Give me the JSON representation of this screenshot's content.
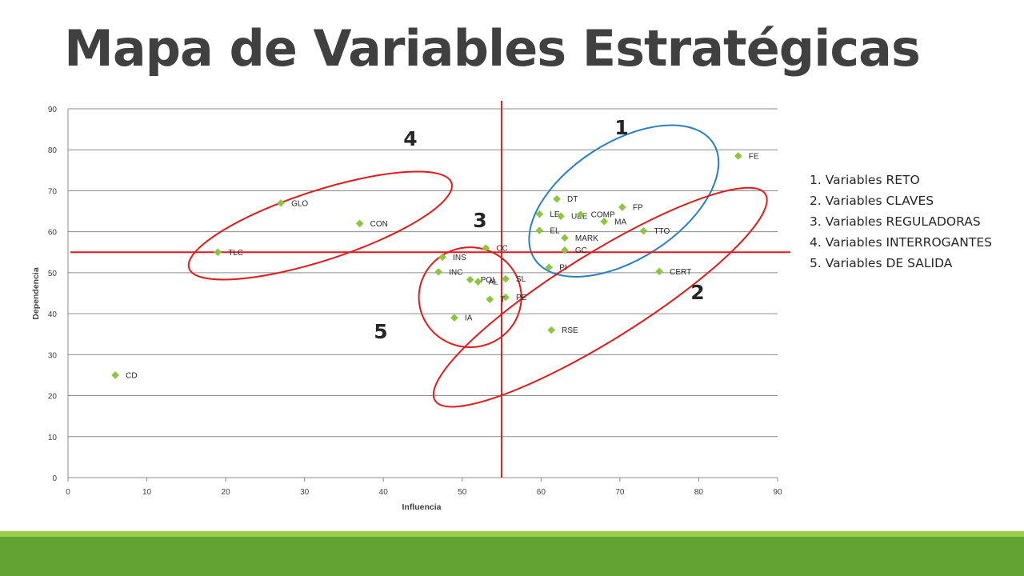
{
  "title": "Mapa de Variables Estratégicas",
  "legend": [
    "1. Variables RETO",
    "2. Variables CLAVES",
    "3. Variables REGULADORAS",
    "4. Variables INTERROGANTES",
    "5. Variables DE SALIDA"
  ],
  "colors": {
    "point": "#8cc63f",
    "grid": "#8c8c8c",
    "axis_line": "#e31a1c",
    "ellipse_red": "#e31a1c",
    "ellipse_blue": "#2a7fc4",
    "title": "#404040",
    "footer_light": "#9acd4a",
    "footer_dark": "#62a333"
  },
  "chart_data": {
    "type": "scatter",
    "title": "",
    "xlabel": "Influencia",
    "ylabel": "Dependencia",
    "xlim": [
      0,
      90
    ],
    "ylim": [
      0,
      90
    ],
    "xticks": [
      0,
      10,
      20,
      30,
      40,
      50,
      60,
      70,
      80,
      90
    ],
    "yticks": [
      0,
      10,
      20,
      30,
      40,
      50,
      60,
      70,
      80,
      90
    ],
    "grid": "horizontal",
    "reference_lines": {
      "x": 55,
      "y": 55
    },
    "points": [
      {
        "label": "FE",
        "x": 85,
        "y": 78.5
      },
      {
        "label": "DT",
        "x": 62,
        "y": 68
      },
      {
        "label": "FP",
        "x": 70.3,
        "y": 66
      },
      {
        "label": "LE",
        "x": 59.8,
        "y": 64.3
      },
      {
        "label": "UEE",
        "x": 62.5,
        "y": 63.8
      },
      {
        "label": "COMP",
        "x": 65,
        "y": 64.2
      },
      {
        "label": "MA",
        "x": 68,
        "y": 62.5
      },
      {
        "label": "EL",
        "x": 59.8,
        "y": 60.3
      },
      {
        "label": "TTO",
        "x": 73,
        "y": 60.2
      },
      {
        "label": "MARK",
        "x": 63,
        "y": 58.5
      },
      {
        "label": "GC",
        "x": 63,
        "y": 55.5
      },
      {
        "label": "CC",
        "x": 53,
        "y": 56
      },
      {
        "label": "PI",
        "x": 61,
        "y": 51.3
      },
      {
        "label": "CERT",
        "x": 75,
        "y": 50.3
      },
      {
        "label": "GLO",
        "x": 27,
        "y": 67
      },
      {
        "label": "CON",
        "x": 37,
        "y": 62
      },
      {
        "label": "TLC",
        "x": 19,
        "y": 55
      },
      {
        "label": "INS",
        "x": 47.5,
        "y": 53.8
      },
      {
        "label": "INC",
        "x": 47,
        "y": 50.2
      },
      {
        "label": "POL",
        "x": 51,
        "y": 48.3
      },
      {
        "label": "AL",
        "x": 52,
        "y": 47.8
      },
      {
        "label": "SL",
        "x": 55.5,
        "y": 48.5
      },
      {
        "label": "PE",
        "x": 55.5,
        "y": 44
      },
      {
        "label": "T",
        "x": 53.5,
        "y": 43.5
      },
      {
        "label": "IA",
        "x": 49,
        "y": 39
      },
      {
        "label": "RSE",
        "x": 61.3,
        "y": 36
      },
      {
        "label": "CD",
        "x": 6,
        "y": 25
      }
    ],
    "groups": [
      {
        "label": "1",
        "color": "blue",
        "center": [
          70.5,
          67.5
        ],
        "radii": [
          13.5,
          14.2
        ],
        "rotation": -33
      },
      {
        "label": "2",
        "color": "red",
        "center": [
          67.5,
          44
        ],
        "radii": [
          24.7,
          10.5
        ],
        "rotation": -32
      },
      {
        "label": "3",
        "color": "none"
      },
      {
        "label": "4",
        "color": "red",
        "center": [
          32,
          61.5
        ],
        "radii": [
          17.5,
          8.5
        ],
        "rotation": -18
      },
      {
        "label": "5",
        "color": "red",
        "center": [
          51,
          44
        ],
        "radii": [
          6.5,
          12.2
        ],
        "rotation": 0
      }
    ]
  }
}
